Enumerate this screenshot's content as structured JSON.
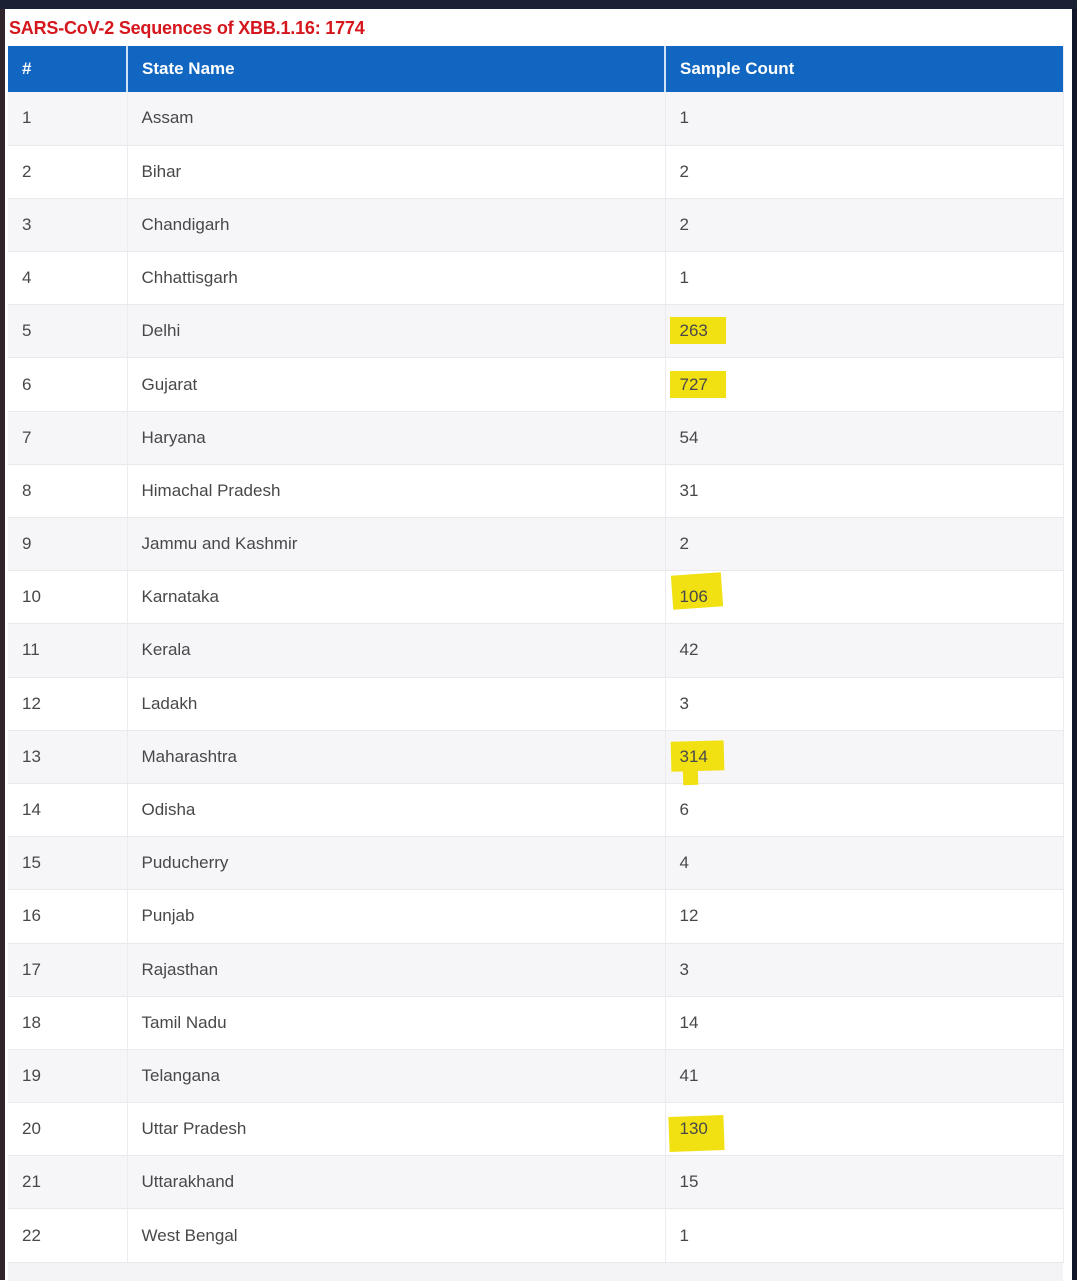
{
  "page": {
    "title": "SARS-CoV-2 Sequences of XBB.1.16: 1774",
    "total_sequences": 1774
  },
  "colors": {
    "title_red": "#d5161d",
    "header_bg": "#1166c1",
    "highlight_yellow": "#f2e112",
    "row_alt_bg": "#f6f6f8",
    "cell_text": "#48484b",
    "top_bar": "#1b2134"
  },
  "table": {
    "columns": [
      "#",
      "State Name",
      "Sample Count"
    ],
    "rows": [
      {
        "index": 1,
        "state": "Assam",
        "count": 1,
        "highlight": null
      },
      {
        "index": 2,
        "state": "Bihar",
        "count": 2,
        "highlight": null
      },
      {
        "index": 3,
        "state": "Chandigarh",
        "count": 2,
        "highlight": null
      },
      {
        "index": 4,
        "state": "Chhattisgarh",
        "count": 1,
        "highlight": null
      },
      {
        "index": 5,
        "state": "Delhi",
        "count": 263,
        "highlight": "rect"
      },
      {
        "index": 6,
        "state": "Gujarat",
        "count": 727,
        "highlight": "rect"
      },
      {
        "index": 7,
        "state": "Haryana",
        "count": 54,
        "highlight": null
      },
      {
        "index": 8,
        "state": "Himachal Pradesh",
        "count": 31,
        "highlight": null
      },
      {
        "index": 9,
        "state": "Jammu and Kashmir",
        "count": 2,
        "highlight": null
      },
      {
        "index": 10,
        "state": "Karnataka",
        "count": 106,
        "highlight": "skew-up"
      },
      {
        "index": 11,
        "state": "Kerala",
        "count": 42,
        "highlight": null
      },
      {
        "index": 12,
        "state": "Ladakh",
        "count": 3,
        "highlight": null
      },
      {
        "index": 13,
        "state": "Maharashtra",
        "count": 314,
        "highlight": "drip"
      },
      {
        "index": 14,
        "state": "Odisha",
        "count": 6,
        "highlight": null
      },
      {
        "index": 15,
        "state": "Puducherry",
        "count": 4,
        "highlight": null
      },
      {
        "index": 16,
        "state": "Punjab",
        "count": 12,
        "highlight": null
      },
      {
        "index": 17,
        "state": "Rajasthan",
        "count": 3,
        "highlight": null
      },
      {
        "index": 18,
        "state": "Tamil Nadu",
        "count": 14,
        "highlight": null
      },
      {
        "index": 19,
        "state": "Telangana",
        "count": 41,
        "highlight": null
      },
      {
        "index": 20,
        "state": "Uttar Pradesh",
        "count": 130,
        "highlight": "skew-down"
      },
      {
        "index": 21,
        "state": "Uttarakhand",
        "count": 15,
        "highlight": null
      },
      {
        "index": 22,
        "state": "West Bengal",
        "count": 1,
        "highlight": null
      }
    ]
  }
}
